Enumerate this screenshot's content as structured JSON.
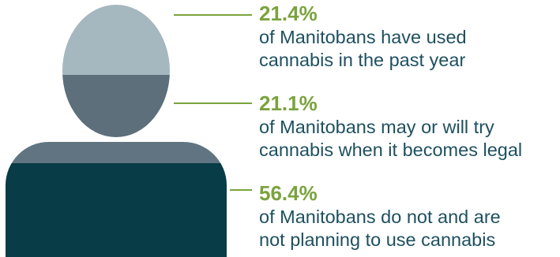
{
  "colors": {
    "accent_green": "#7aa33d",
    "text_teal": "#1e5060",
    "head_light": "#a5b7bf",
    "head_mid": "#5c6f7a",
    "body_mid": "#607581",
    "body_dark": "#083c46",
    "leader_line": "#7aa33d"
  },
  "chart_data": {
    "type": "pictograph",
    "categories": [
      "have used cannabis in the past year",
      "may or will try cannabis when it becomes legal",
      "do not and are not planning to use cannabis"
    ],
    "values": [
      21.4,
      21.1,
      56.4
    ],
    "unit": "%"
  },
  "stats": [
    {
      "percent": "21.4%",
      "line1": "of Manitobans have used",
      "line2": "cannabis in the past year"
    },
    {
      "percent": "21.1%",
      "line1": "of Manitobans may or will try",
      "line2": "cannabis when it becomes legal"
    },
    {
      "percent": "56.4%",
      "line1": "of Manitobans do not and are",
      "line2": "not planning to use cannabis"
    }
  ]
}
